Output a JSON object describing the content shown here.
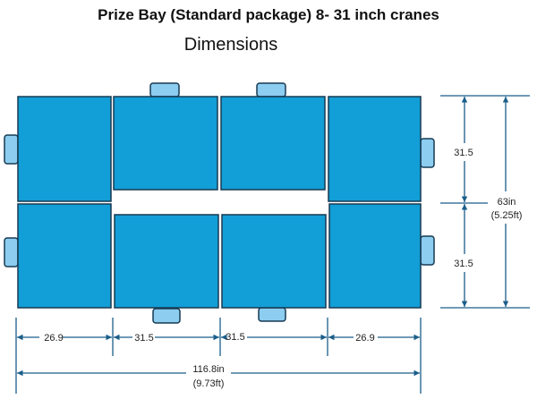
{
  "title": "Prize Bay (Standard package) 8- 31 inch cranes",
  "subtitle": "Dimensions",
  "colors": {
    "crane": "#129ed6",
    "tab": "#8ccdf0",
    "outline": "#173a52",
    "dimension": "#1b5e8a"
  },
  "dimensions": {
    "widths": [
      "26.9",
      "31.5",
      "31.5",
      "26.9"
    ],
    "total_width": "116.8in",
    "total_width_ft": "(9.73ft)",
    "heights": [
      "31.5",
      "31.5"
    ],
    "total_height": "63in",
    "total_height_ft": "(5.25ft)"
  }
}
